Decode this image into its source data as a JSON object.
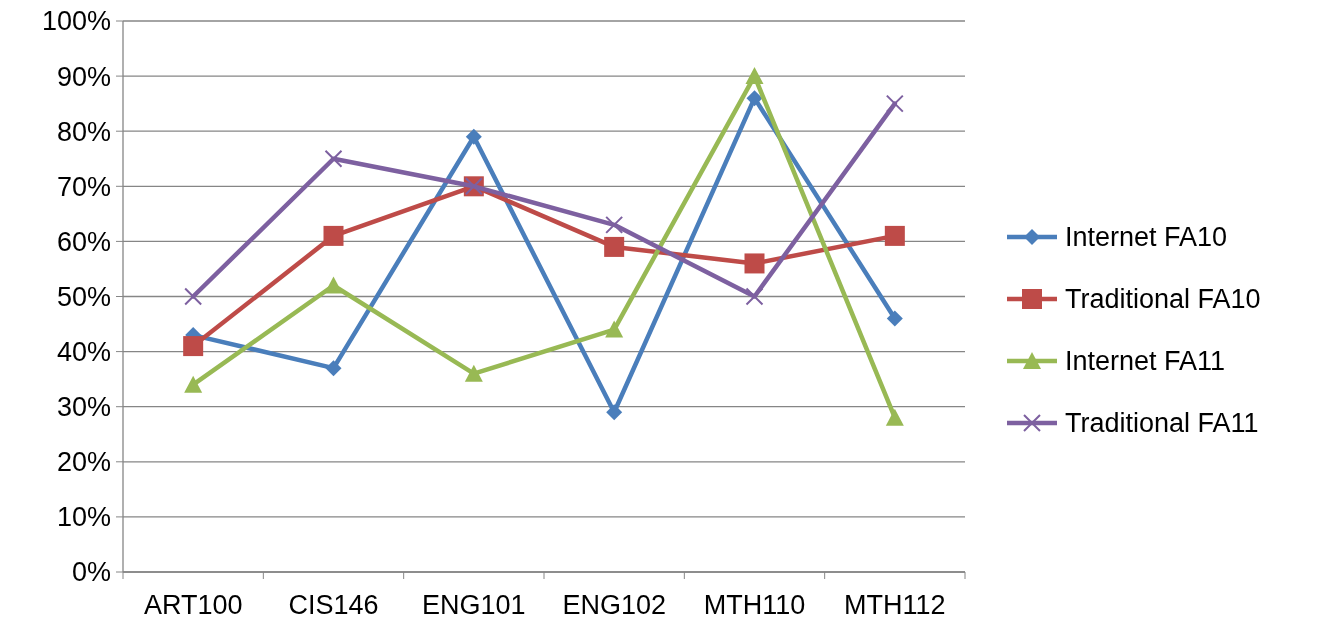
{
  "chart_data": {
    "type": "line",
    "categories": [
      "ART100",
      "CIS146",
      "ENG101",
      "ENG102",
      "MTH110",
      "MTH112"
    ],
    "series": [
      {
        "name": "Internet FA10",
        "color": "#4a7ebb",
        "marker": "diamond",
        "values": [
          43,
          37,
          79,
          29,
          86,
          46
        ]
      },
      {
        "name": "Traditional FA10",
        "color": "#be4b48",
        "marker": "square",
        "values": [
          41,
          61,
          70,
          59,
          56,
          61
        ]
      },
      {
        "name": "Internet FA11",
        "color": "#98b954",
        "marker": "triangle",
        "values": [
          34,
          52,
          36,
          44,
          90,
          28
        ]
      },
      {
        "name": "Traditional FA11",
        "color": "#7d60a0",
        "marker": "cross",
        "values": [
          50,
          75,
          70,
          63,
          50,
          85
        ]
      }
    ],
    "ylim": [
      0,
      100
    ],
    "yticks": [
      {
        "value": 0,
        "label": "0%"
      },
      {
        "value": 10,
        "label": "10%"
      },
      {
        "value": 20,
        "label": "20%"
      },
      {
        "value": 30,
        "label": "30%"
      },
      {
        "value": 40,
        "label": "40%"
      },
      {
        "value": 50,
        "label": "50%"
      },
      {
        "value": 60,
        "label": "60%"
      },
      {
        "value": 70,
        "label": "70%"
      },
      {
        "value": 80,
        "label": "80%"
      },
      {
        "value": 90,
        "label": "90%"
      },
      {
        "value": 100,
        "label": "100%"
      }
    ],
    "grid": "y",
    "legend": "right",
    "line_style": "solid"
  }
}
